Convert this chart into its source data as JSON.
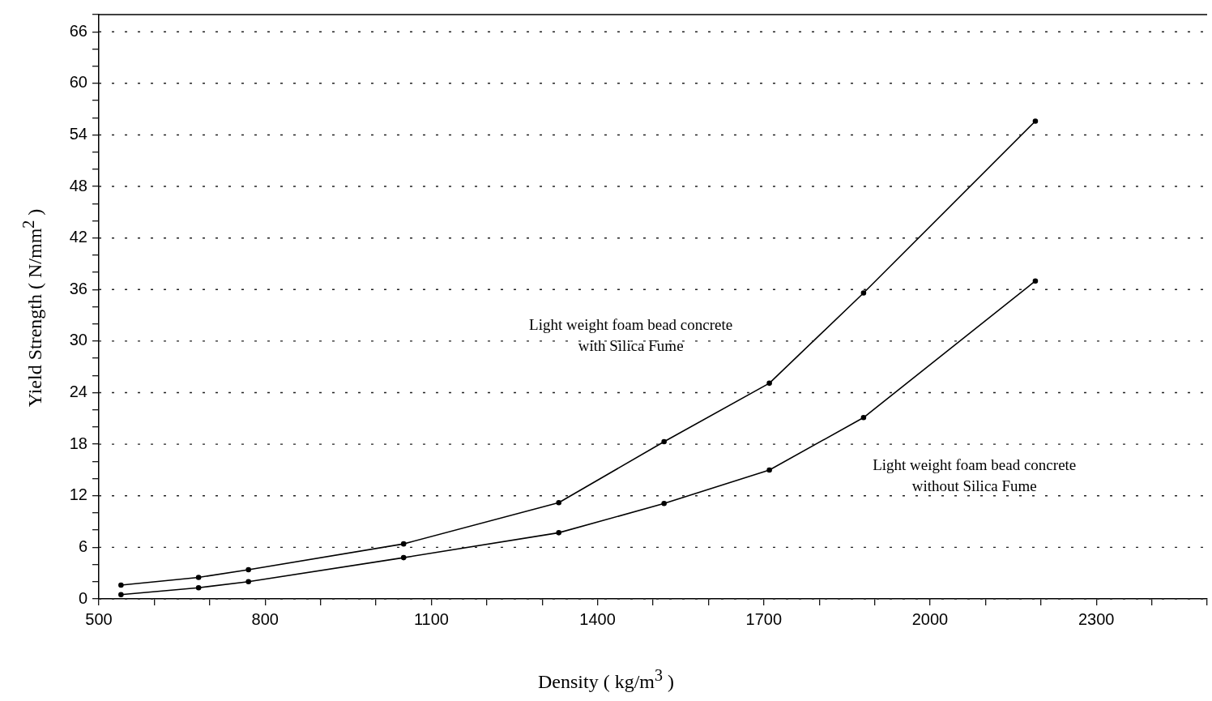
{
  "chart_data": {
    "type": "line",
    "xlabel": "Density ( kg/m$^{3}$ )",
    "ylabel": "Yield Strength ( N/mm$^{2}$ )",
    "xlim": [
      500,
      2500
    ],
    "xticks": [
      500,
      {
        "value": 600,
        "label": null
      },
      {
        "value": 700,
        "label": null
      },
      800,
      {
        "value": 900,
        "label": null
      },
      {
        "value": 1000,
        "label": null
      },
      1100,
      {
        "value": 1200,
        "label": null
      },
      {
        "value": 1300,
        "label": null
      },
      1400,
      {
        "value": 1500,
        "label": null
      },
      {
        "value": 1600,
        "label": null
      },
      1700,
      {
        "value": 1800,
        "label": null
      },
      {
        "value": 1900,
        "label": null
      },
      2000,
      {
        "value": 2100,
        "label": null
      },
      {
        "value": 2200,
        "label": null
      },
      2300,
      {
        "value": 2400,
        "label": null
      },
      {
        "value": 2500,
        "label": null
      }
    ],
    "ylim": [
      0,
      68
    ],
    "yticks": [
      0,
      {
        "value": 2,
        "label": null
      },
      {
        "value": 4,
        "label": null
      },
      6,
      {
        "value": 8,
        "label": null
      },
      {
        "value": 10,
        "label": null
      },
      12,
      {
        "value": 14,
        "label": null
      },
      {
        "value": 16,
        "label": null
      },
      18,
      {
        "value": 20,
        "label": null
      },
      {
        "value": 22,
        "label": null
      },
      24,
      {
        "value": 26,
        "label": null
      },
      {
        "value": 28,
        "label": null
      },
      30,
      {
        "value": 32,
        "label": null
      },
      {
        "value": 34,
        "label": null
      },
      36,
      {
        "value": 38,
        "label": null
      },
      {
        "value": 40,
        "label": null
      },
      42,
      {
        "value": 44,
        "label": null
      },
      {
        "value": 46,
        "label": null
      },
      48,
      {
        "value": 50,
        "label": null
      },
      {
        "value": 52,
        "label": null
      },
      54,
      {
        "value": 56,
        "label": null
      },
      {
        "value": 58,
        "label": null
      },
      60,
      {
        "value": 62,
        "label": null
      },
      {
        "value": 64,
        "label": null
      },
      66,
      {
        "value": 68,
        "label": null
      }
    ],
    "x": [
      540,
      680,
      770,
      1050,
      1330,
      1520,
      1710,
      1880,
      2190
    ],
    "series": [
      {
        "color": "#000000",
        "values": [
          1.6,
          2.5,
          3.4,
          6.4,
          11.2,
          18.3,
          25.1,
          35.6,
          55.6
        ]
      },
      {
        "color": "#000000",
        "values": [
          0.5,
          1.3,
          2.0,
          4.8,
          7.7,
          11.1,
          15.0,
          21.1,
          37.0
        ]
      }
    ],
    "annotations": [
      "Light weight foam bead concrete\nwith Silica Fume",
      "Light weight foam bead concrete\nwithout Silica Fume"
    ],
    "grid": "y",
    "marker": "circle",
    "line_style": "solid",
    "legend": false
  }
}
